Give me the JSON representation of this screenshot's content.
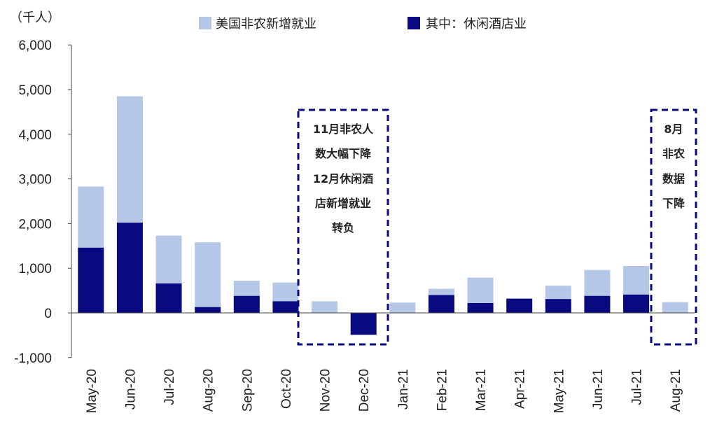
{
  "chart_data": {
    "type": "bar",
    "ylabel": "（千人）",
    "ylim": [
      -1000,
      6000
    ],
    "yticks": [
      "6,000",
      "5,000",
      "4,000",
      "3,000",
      "2,000",
      "1,000",
      "0",
      "-1,000"
    ],
    "ytick_values": [
      6000,
      5000,
      4000,
      3000,
      2000,
      1000,
      0,
      -1000
    ],
    "categories": [
      "May-20",
      "Jun-20",
      "Jul-20",
      "Aug-20",
      "Sep-20",
      "Oct-20",
      "Nov-20",
      "Dec-20",
      "Jan-21",
      "Feb-21",
      "Mar-21",
      "Apr-21",
      "May-21",
      "Jun-21",
      "Jul-21",
      "Aug-21"
    ],
    "series": [
      {
        "name": "美国非农新增就业",
        "color": "#b4c7e7",
        "values": [
          2830,
          4850,
          1730,
          1580,
          720,
          680,
          260,
          0,
          230,
          540,
          790,
          0,
          610,
          960,
          1050,
          240
        ]
      },
      {
        "name": "其中：休闲酒店业",
        "color": "#0a0a80",
        "values": [
          1460,
          2020,
          660,
          130,
          380,
          260,
          0,
          -490,
          0,
          400,
          220,
          320,
          310,
          380,
          410,
          0
        ]
      }
    ],
    "annotations": [
      {
        "lines": [
          "11月非农人",
          "数大幅下降",
          "12月休闲酒",
          "店新增就业",
          "转负"
        ]
      },
      {
        "lines": [
          "8月",
          "非农",
          "数据",
          "下降"
        ]
      }
    ],
    "grid": false,
    "legend_position": "top"
  }
}
